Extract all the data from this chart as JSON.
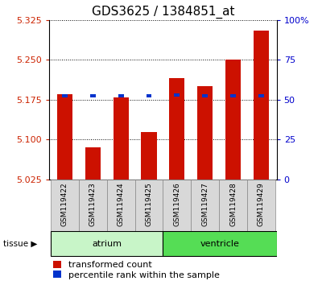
{
  "title": "GDS3625 / 1384851_at",
  "samples": [
    "GSM119422",
    "GSM119423",
    "GSM119424",
    "GSM119425",
    "GSM119426",
    "GSM119427",
    "GSM119428",
    "GSM119429"
  ],
  "red_values": [
    5.185,
    5.085,
    5.18,
    5.115,
    5.215,
    5.2,
    5.25,
    5.305
  ],
  "blue_values": [
    5.183,
    5.182,
    5.183,
    5.182,
    5.184,
    5.183,
    5.183,
    5.183
  ],
  "y_min": 5.025,
  "y_max": 5.325,
  "y_ticks": [
    5.025,
    5.1,
    5.175,
    5.25,
    5.325
  ],
  "y_right_ticks": [
    0,
    25,
    50,
    75,
    100
  ],
  "bar_color": "#cc1100",
  "blue_color": "#0033cc",
  "base_value": 5.025,
  "tick_color_left": "#cc2200",
  "tick_color_right": "#0000cc",
  "title_fontsize": 11,
  "axis_fontsize": 8,
  "label_fontsize": 6.5,
  "tissue_fontsize": 8,
  "legend_fontsize": 8,
  "atrium_color": "#c8f5c8",
  "ventricle_color": "#55dd55",
  "sample_bg_color": "#d8d8d8",
  "sample_border_color": "#888888"
}
